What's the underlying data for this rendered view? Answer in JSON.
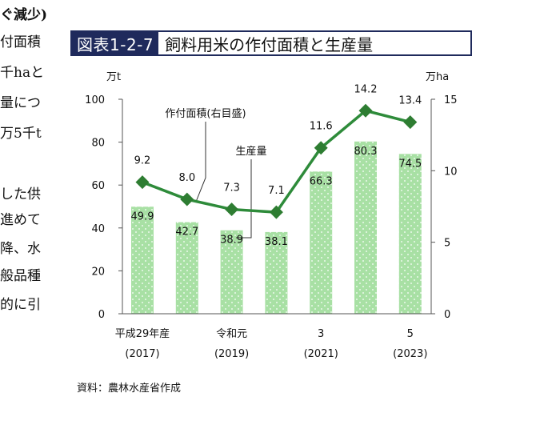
{
  "side_text": {
    "lines": [
      "ぐ減少)",
      "付面積",
      "千haと",
      "量につ",
      "万5千t",
      "",
      "した供",
      "進めて",
      "降、水",
      "般品種",
      "的に引"
    ]
  },
  "figure": {
    "number": "図表1-2-7",
    "title": "飼料用米の作付面積と生産量"
  },
  "source": "資料：農林水産省作成",
  "colors": {
    "bar_fill": "#a8e0a4",
    "bar_dot": "#ffffff",
    "line": "#2e8b3a",
    "marker": "#2e7d32",
    "title_box": "#1f2a5c",
    "axis": "#555555"
  },
  "chart_data": {
    "type": "bar+line",
    "categories": [
      "平成29年産",
      "",
      "令和元",
      "",
      "3",
      "",
      "5"
    ],
    "category_years": [
      "(2017)",
      "",
      "(2019)",
      "",
      "(2021)",
      "",
      "(2023)"
    ],
    "left_axis": {
      "unit": "万t",
      "ylim": [
        0,
        100
      ],
      "ticks": [
        0,
        20,
        40,
        60,
        80,
        100
      ]
    },
    "right_axis": {
      "unit": "万ha",
      "ylim": [
        0,
        15
      ],
      "ticks": [
        0,
        5,
        10,
        15
      ]
    },
    "series": [
      {
        "name": "生産量",
        "type": "bar",
        "axis": "left",
        "values": [
          49.9,
          42.7,
          38.9,
          38.1,
          66.3,
          80.3,
          74.5
        ]
      },
      {
        "name": "作付面積(右目盛)",
        "type": "line",
        "axis": "right",
        "values": [
          9.2,
          8.0,
          7.3,
          7.1,
          11.6,
          14.2,
          13.4
        ]
      }
    ],
    "grid": false,
    "legend": "callout-labels"
  }
}
